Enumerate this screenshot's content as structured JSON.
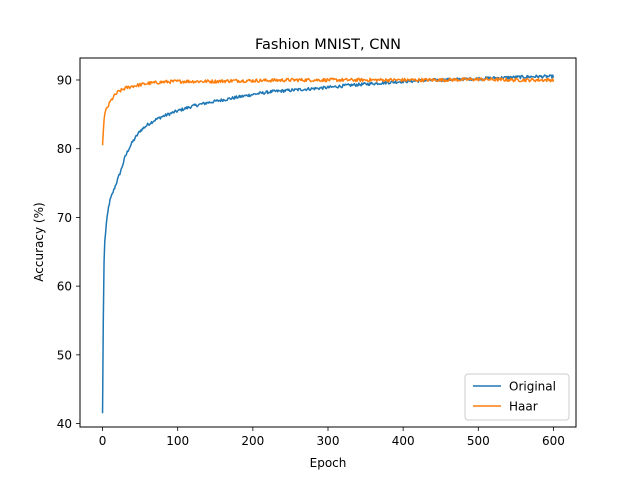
{
  "chart_data": {
    "type": "line",
    "title": "Fashion MNIST, CNN",
    "xlabel": "Epoch",
    "ylabel": "Accuracy (%)",
    "xlim": [
      -30,
      630
    ],
    "ylim": [
      39.5,
      93.2
    ],
    "xticks": [
      0,
      100,
      200,
      300,
      400,
      500,
      600
    ],
    "yticks": [
      40,
      50,
      60,
      70,
      80,
      90
    ],
    "grid": false,
    "legend_position": "lower-right",
    "series": [
      {
        "name": "Original",
        "color": "#1f77b4",
        "x": [
          0,
          1,
          2,
          3,
          5,
          8,
          10,
          15,
          20,
          25,
          30,
          35,
          40,
          50,
          60,
          70,
          80,
          90,
          100,
          120,
          140,
          160,
          180,
          200,
          225,
          250,
          275,
          300,
          325,
          350,
          375,
          400,
          425,
          450,
          475,
          500,
          525,
          550,
          575,
          600
        ],
        "y": [
          41.5,
          55.0,
          63.5,
          66.5,
          69.0,
          71.5,
          72.5,
          74.0,
          75.5,
          77.0,
          78.8,
          80.0,
          81.0,
          82.6,
          83.5,
          84.2,
          84.7,
          85.1,
          85.5,
          86.2,
          86.7,
          87.1,
          87.5,
          87.9,
          88.3,
          88.5,
          88.7,
          88.9,
          89.2,
          89.4,
          89.6,
          89.8,
          89.9,
          90.0,
          90.1,
          90.2,
          90.3,
          90.4,
          90.5,
          90.5
        ]
      },
      {
        "name": "Haar",
        "color": "#ff7f0e",
        "x": [
          0,
          1,
          2,
          3,
          5,
          8,
          10,
          15,
          20,
          25,
          30,
          40,
          50,
          60,
          70,
          80,
          100,
          125,
          150,
          175,
          200,
          250,
          300,
          350,
          400,
          450,
          500,
          550,
          600
        ],
        "y": [
          80.5,
          82.5,
          84.2,
          85.0,
          85.7,
          86.3,
          86.8,
          87.6,
          88.2,
          88.5,
          88.8,
          89.1,
          89.3,
          89.5,
          89.6,
          89.7,
          89.8,
          89.8,
          89.8,
          89.9,
          89.9,
          90.0,
          90.0,
          90.0,
          90.0,
          90.0,
          90.1,
          90.0,
          90.0
        ]
      }
    ]
  }
}
